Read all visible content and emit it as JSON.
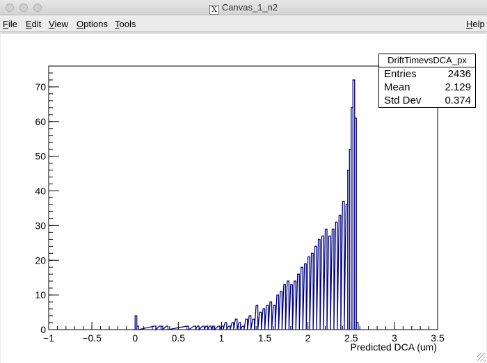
{
  "window": {
    "title": "Canvas_1_n2"
  },
  "menu": {
    "left": [
      "File",
      "Edit",
      "View",
      "Options",
      "Tools"
    ],
    "right": "Help"
  },
  "stats": {
    "name": "DriftTimevsDCA_px",
    "entries_label": "Entries",
    "entries": "2436",
    "mean_label": "Mean",
    "mean": "2.129",
    "stddev_label": "Std Dev",
    "stddev": "0.374"
  },
  "chart_data": {
    "type": "histogram",
    "xlabel": "Predicted DCA (um)",
    "ylabel": "",
    "xlim": [
      -1,
      3.5
    ],
    "ylim": [
      0,
      76
    ],
    "x_ticks": [
      -1,
      -0.5,
      0,
      0.5,
      1,
      1.5,
      2,
      2.5,
      3,
      3.5
    ],
    "x_tick_labels": [
      "−1",
      "−0.5",
      "0",
      "0.5",
      "1",
      "1.5",
      "2",
      "2.5",
      "3",
      "3.5"
    ],
    "y_ticks": [
      0,
      10,
      20,
      30,
      40,
      50,
      60,
      70
    ],
    "y_tick_labels": [
      "0",
      "10",
      "20",
      "30",
      "40",
      "50",
      "60",
      "70"
    ],
    "grid": false,
    "line_color": "#000080",
    "bins": [
      [
        0.0,
        4
      ],
      [
        0.02,
        1
      ],
      [
        0.22,
        1
      ],
      [
        0.28,
        1
      ],
      [
        0.3,
        1
      ],
      [
        0.36,
        1
      ],
      [
        0.6,
        1
      ],
      [
        0.68,
        1
      ],
      [
        0.72,
        1
      ],
      [
        0.78,
        1
      ],
      [
        0.82,
        1
      ],
      [
        0.86,
        1
      ],
      [
        0.9,
        1
      ],
      [
        0.96,
        1
      ],
      [
        1.0,
        1
      ],
      [
        1.04,
        2
      ],
      [
        1.08,
        1
      ],
      [
        1.12,
        2
      ],
      [
        1.16,
        3
      ],
      [
        1.2,
        2
      ],
      [
        1.24,
        1
      ],
      [
        1.28,
        3
      ],
      [
        1.32,
        4
      ],
      [
        1.36,
        3
      ],
      [
        1.4,
        7
      ],
      [
        1.44,
        5
      ],
      [
        1.48,
        6
      ],
      [
        1.52,
        7
      ],
      [
        1.56,
        8
      ],
      [
        1.6,
        7
      ],
      [
        1.64,
        10
      ],
      [
        1.68,
        11
      ],
      [
        1.72,
        13
      ],
      [
        1.76,
        14
      ],
      [
        1.8,
        13
      ],
      [
        1.84,
        14
      ],
      [
        1.88,
        16
      ],
      [
        1.92,
        18
      ],
      [
        1.96,
        19
      ],
      [
        2.0,
        21
      ],
      [
        2.04,
        22
      ],
      [
        2.08,
        24
      ],
      [
        2.12,
        26
      ],
      [
        2.16,
        27
      ],
      [
        2.2,
        29
      ],
      [
        2.24,
        27
      ],
      [
        2.28,
        29
      ],
      [
        2.32,
        31
      ],
      [
        2.36,
        33
      ],
      [
        2.4,
        37
      ],
      [
        2.44,
        36
      ],
      [
        2.46,
        46
      ],
      [
        2.48,
        52
      ],
      [
        2.5,
        64
      ],
      [
        2.52,
        72
      ],
      [
        2.54,
        61
      ],
      [
        2.56,
        2
      ],
      [
        2.58,
        0
      ]
    ]
  }
}
